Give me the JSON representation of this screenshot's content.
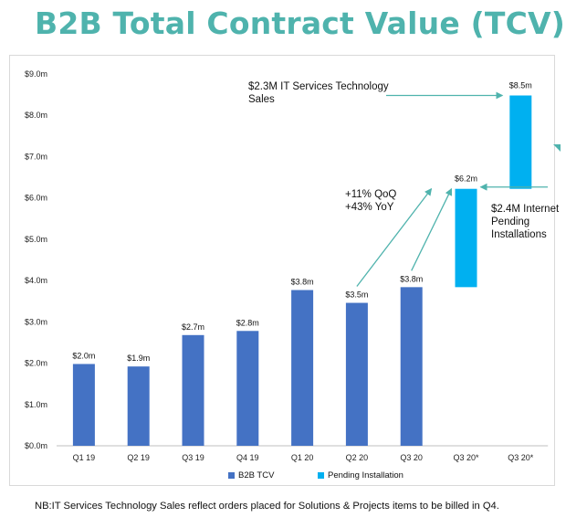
{
  "title": "B2B Total Contract Value (TCV)",
  "footnote": "NB:IT Services Technology Sales reflect orders placed for Solutions & Projects items to be billed in Q4.",
  "annotations": {
    "it_sales": [
      "$2.3M IT Services Technology",
      "Sales"
    ],
    "growth": [
      "+11% QoQ",
      "+43% YoY"
    ],
    "pending": [
      "$2.4M Internet",
      "Pending",
      "Installations"
    ]
  },
  "colors": {
    "title": "#4fb3ad",
    "b2b_tcv": "#4472c4",
    "pending": "#00b0f0",
    "arrow": "#4fb3ad",
    "grid": "#d9d9d9"
  },
  "chart_data": {
    "type": "bar",
    "title": "B2B Total Contract Value (TCV)",
    "categories": [
      "Q1 19",
      "Q2 19",
      "Q3 19",
      "Q4 19",
      "Q1 20",
      "Q2 20",
      "Q3 20",
      "Q3 20*",
      "Q3 20*"
    ],
    "y_ticks": [
      "$0.0m",
      "$1.0m",
      "$2.0m",
      "$3.0m",
      "$4.0m",
      "$5.0m",
      "$6.0m",
      "$7.0m",
      "$8.0m",
      "$9.0m"
    ],
    "ylim": [
      0,
      9
    ],
    "grid": false,
    "legend": {
      "position": "bottom",
      "entries": [
        "B2B TCV",
        "Pending Installation"
      ]
    },
    "series": [
      {
        "name": "B2B TCV",
        "values": [
          1.98,
          1.92,
          2.68,
          2.78,
          3.77,
          3.46,
          3.84,
          null,
          null
        ],
        "labels": [
          "$2.0m",
          "$1.9m",
          "$2.7m",
          "$2.8m",
          "$3.8m",
          "$3.5m",
          "$3.8m",
          "",
          ""
        ]
      },
      {
        "name": "Pending Installation",
        "ranges": [
          null,
          null,
          null,
          null,
          null,
          null,
          null,
          [
            3.84,
            6.22
          ],
          [
            6.22,
            8.48
          ]
        ],
        "labels": [
          "",
          "",
          "",
          "",
          "",
          "",
          "",
          "$6.2m",
          "$8.5m"
        ]
      }
    ]
  }
}
